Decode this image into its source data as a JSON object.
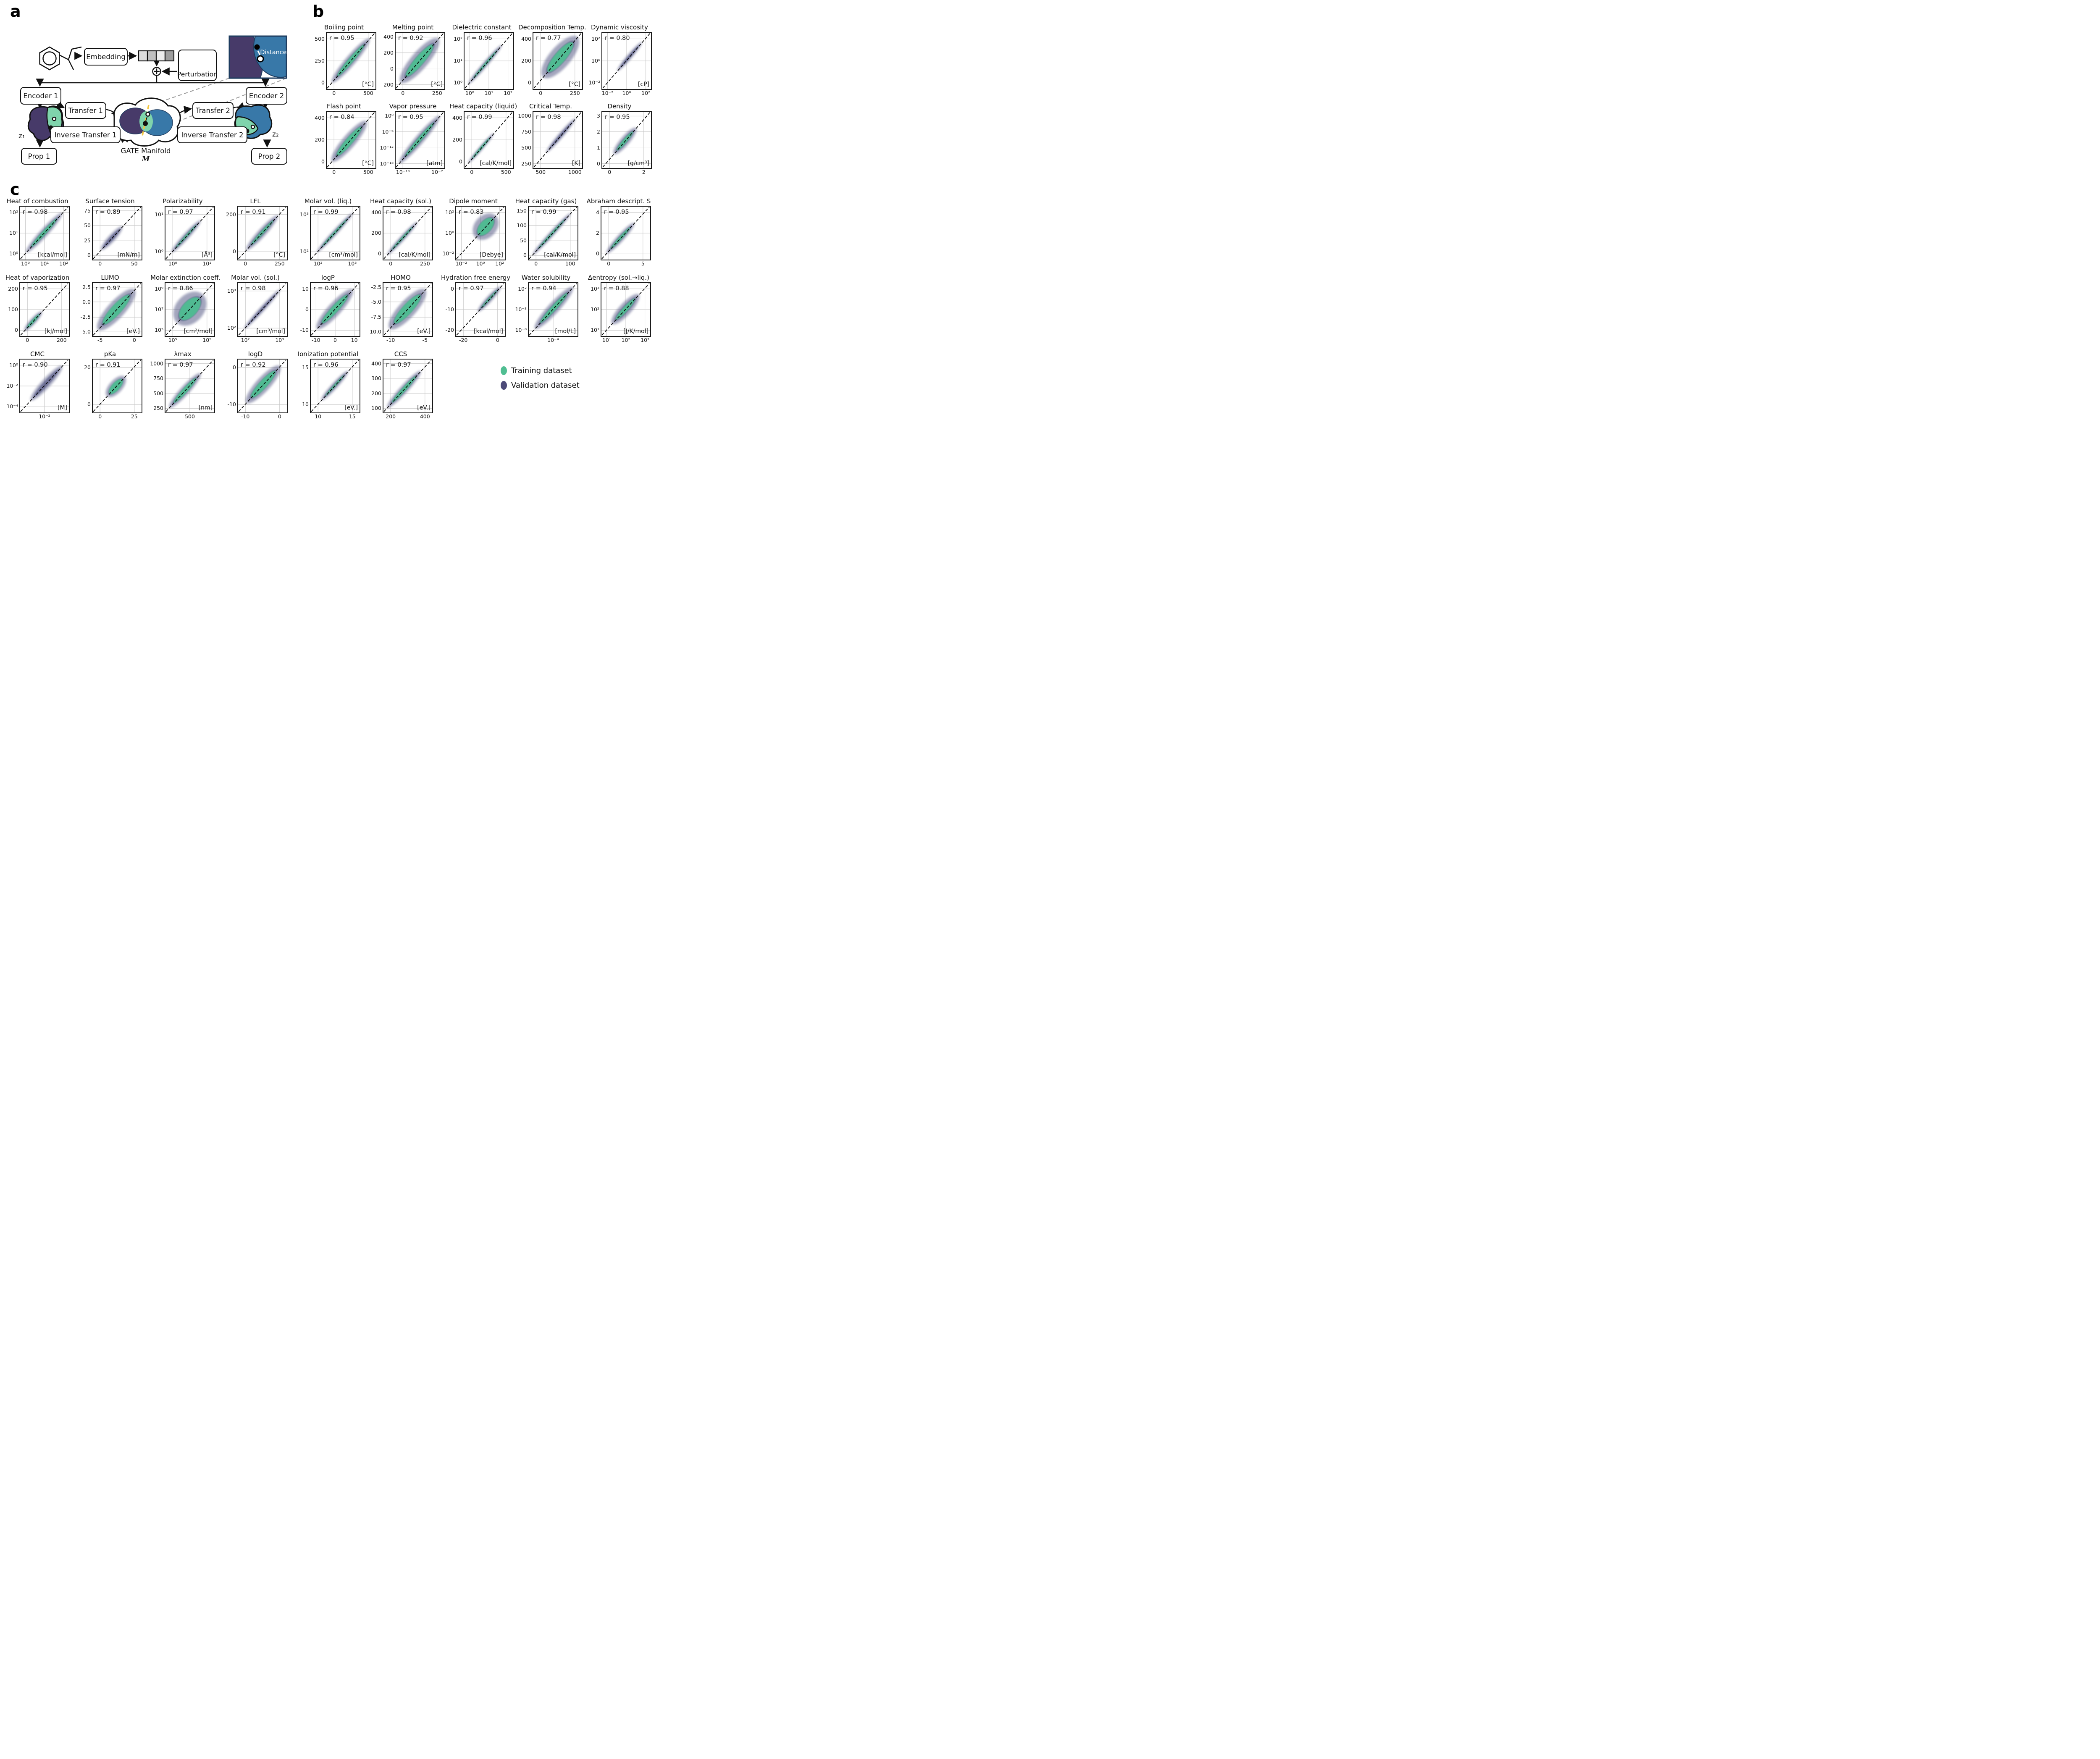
{
  "panel_a": {
    "label": "a",
    "boxes": {
      "embedding": "Embedding",
      "perturbation": "Perturbation",
      "encoder1": "Encoder 1",
      "encoder2": "Encoder 2",
      "transfer1": "Transfer 1",
      "transfer2": "Transfer 2",
      "inverse_transfer1": "Inverse Transfer 1",
      "inverse_transfer2": "Inverse Transfer 2",
      "prop1": "Prop 1",
      "prop2": "Prop 2"
    },
    "labels": {
      "z1": "z₁",
      "z2": "z₂",
      "manifold": "GATE Manifold",
      "manifold_symbol": "M",
      "distance": "Distance"
    }
  },
  "panel_b_label": "b",
  "panel_c_label": "c",
  "legend": {
    "items": [
      {
        "label": "Training dataset",
        "color": "#50BE92"
      },
      {
        "label": "Validation dataset",
        "color": "#4C4A78"
      }
    ]
  },
  "colors": {
    "training_green": "#50BE92",
    "validation_navy": "#4C4A78",
    "cloud_navy": "#4A4E7D",
    "purple": "#473A69",
    "blue": "#3878A8",
    "green": "#7FD4AC",
    "inset_border": "#1E3C5F",
    "yellow_dash": "#F3C53D",
    "grid_gray": "#C6C6C6"
  },
  "chart_data": {
    "type": "scatter",
    "note": "density scatter plots of predicted vs experimental property values; dashed identity line; green = training dataset, navy = validation dataset",
    "legend_entries": [
      "Training dataset",
      "Validation dataset"
    ],
    "panel_b": [
      {
        "title": "Boiling point",
        "r_label": "r = 0.95",
        "r": 0.95,
        "unit": "[°C]",
        "x_ticks": [
          "0",
          "500"
        ],
        "y_ticks": [
          "500",
          "250",
          "0"
        ],
        "scale": "linear",
        "cloud": {
          "w": 0.1,
          "g": 0.05,
          "span": [
            0.08,
            0.92
          ]
        }
      },
      {
        "title": "Melting point",
        "r_label": "r = 0.92",
        "r": 0.92,
        "unit": "[°C]",
        "x_ticks": [
          "0",
          "250"
        ],
        "y_ticks": [
          "400",
          "200",
          "0",
          "-200"
        ],
        "scale": "linear",
        "cloud": {
          "w": 0.17,
          "g": 0.09,
          "span": [
            0.08,
            0.92
          ]
        }
      },
      {
        "title": "Dielectric constant",
        "r_label": "r = 0.96",
        "r": 0.96,
        "unit": "",
        "x_ticks": [
          "10⁰",
          "10¹",
          "10²"
        ],
        "y_ticks": [
          "10²",
          "10¹",
          "10⁰"
        ],
        "scale": "log",
        "cloud": {
          "w": 0.05,
          "g": 0.02,
          "span": [
            0.05,
            0.8
          ]
        }
      },
      {
        "title": "Decomposition Temp.",
        "r_label": "r = 0.77",
        "r": 0.77,
        "unit": "[°C]",
        "x_ticks": [
          "0",
          "250"
        ],
        "y_ticks": [
          "400",
          "200",
          "0"
        ],
        "scale": "linear",
        "cloud": {
          "w": 0.21,
          "g": 0.11,
          "span": [
            0.18,
            0.95
          ]
        }
      },
      {
        "title": "Dynamic viscosity",
        "r_label": "r = 0.80",
        "r": 0.8,
        "unit": "[cP]",
        "x_ticks": [
          "10⁻²",
          "10⁰",
          "10²"
        ],
        "y_ticks": [
          "10²",
          "10⁰",
          "10⁻²"
        ],
        "scale": "log",
        "cloud": {
          "w": 0.05,
          "g": 0.0,
          "span": [
            0.3,
            0.85
          ]
        }
      },
      {
        "title": "Flash point",
        "r_label": "r = 0.84",
        "r": 0.84,
        "unit": "[°C]",
        "x_ticks": [
          "0",
          "500"
        ],
        "y_ticks": [
          "400",
          "200",
          "0"
        ],
        "scale": "linear",
        "cloud": {
          "w": 0.13,
          "g": 0.07,
          "span": [
            0.08,
            0.85
          ]
        }
      },
      {
        "title": "Vapor pressure",
        "r_label": "r = 0.95",
        "r": 0.95,
        "unit": "[atm]",
        "x_ticks": [
          "10⁻¹⁸",
          "10⁻⁷"
        ],
        "y_ticks": [
          "10⁰",
          "10⁻⁶",
          "10⁻¹²",
          "10⁻¹⁸"
        ],
        "scale": "log",
        "cloud": {
          "w": 0.09,
          "g": 0.04,
          "span": [
            0.05,
            0.95
          ]
        }
      },
      {
        "title": "Heat capacity (liquid)",
        "r_label": "r = 0.99",
        "r": 0.99,
        "unit": "[cal/K/mol]",
        "x_ticks": [
          "0",
          "500"
        ],
        "y_ticks": [
          "400",
          "200",
          "0"
        ],
        "scale": "linear",
        "cloud": {
          "w": 0.04,
          "g": 0.02,
          "span": [
            0.05,
            0.62
          ]
        }
      },
      {
        "title": "Critical Temp.",
        "r_label": "r = 0.98",
        "r": 0.98,
        "unit": "[K]",
        "x_ticks": [
          "500",
          "1000"
        ],
        "y_ticks": [
          "1000",
          "750",
          "500",
          "250"
        ],
        "scale": "linear",
        "cloud": {
          "w": 0.05,
          "g": 0.0,
          "span": [
            0.25,
            0.9
          ]
        }
      },
      {
        "title": "Density",
        "r_label": "r = 0.95",
        "r": 0.95,
        "unit": "[g/cm³]",
        "x_ticks": [
          "0",
          "2"
        ],
        "y_ticks": [
          "3",
          "2",
          "1",
          "0"
        ],
        "scale": "linear",
        "cloud": {
          "w": 0.09,
          "g": 0.04,
          "span": [
            0.22,
            0.72
          ]
        }
      }
    ],
    "panel_c_rows": [
      [
        {
          "title": "Heat of combustion",
          "r_label": "r = 0.98",
          "r": 0.98,
          "unit": "[kcal/mol]",
          "x_ticks": [
            "10⁰",
            "10¹",
            "10²"
          ],
          "y_ticks": [
            "10²",
            "10¹",
            "10⁰"
          ],
          "scale": "log",
          "cloud": {
            "w": 0.08,
            "g": 0.04,
            "span": [
              0.1,
              0.9
            ]
          }
        },
        {
          "title": "Surface tension",
          "r_label": "r = 0.89",
          "r": 0.89,
          "unit": "[mN/m]",
          "x_ticks": [
            "0",
            "50"
          ],
          "y_ticks": [
            "75",
            "50",
            "25",
            "0"
          ],
          "scale": "linear",
          "cloud": {
            "w": 0.07,
            "g": 0.0,
            "span": [
              0.15,
              0.62
            ]
          }
        },
        {
          "title": "Polarizability",
          "r_label": "r = 0.97",
          "r": 0.97,
          "unit": "[Å³]",
          "x_ticks": [
            "10⁰",
            "10¹"
          ],
          "y_ticks": [
            "10¹",
            "10⁰"
          ],
          "scale": "log",
          "cloud": {
            "w": 0.06,
            "g": 0.02,
            "span": [
              0.1,
              0.75
            ]
          }
        },
        {
          "title": "LFL",
          "r_label": "r = 0.91",
          "r": 0.91,
          "unit": "[°C]",
          "x_ticks": [
            "0",
            "250"
          ],
          "y_ticks": [
            "200",
            "0"
          ],
          "scale": "linear",
          "cloud": {
            "w": 0.08,
            "g": 0.03,
            "span": [
              0.15,
              0.85
            ]
          }
        },
        {
          "title": "Molar vol. (liq.)",
          "r_label": "r = 0.99",
          "r": 0.99,
          "unit": "[cm³/mol]",
          "x_ticks": [
            "10²",
            "10³"
          ],
          "y_ticks": [
            "10³",
            "10²"
          ],
          "scale": "log",
          "cloud": {
            "w": 0.05,
            "g": 0.02,
            "span": [
              0.1,
              0.9
            ]
          }
        },
        {
          "title": "Heat capacity (sol.)",
          "r_label": "r = 0.98",
          "r": 0.98,
          "unit": "[cal/K/mol]",
          "x_ticks": [
            "0",
            "250"
          ],
          "y_ticks": [
            "400",
            "200",
            "0"
          ],
          "scale": "linear",
          "cloud": {
            "w": 0.05,
            "g": 0.02,
            "span": [
              0.05,
              0.72
            ]
          }
        },
        {
          "title": "Dipole moment",
          "r_label": "r = 0.83",
          "r": 0.83,
          "unit": "[Debye]",
          "x_ticks": [
            "10⁻²",
            "10⁰",
            "10²"
          ],
          "y_ticks": [
            "10²",
            "10⁰",
            "10⁻²"
          ],
          "scale": "log",
          "cloud": {
            "w": 0.22,
            "g": 0.12,
            "span": [
              0.4,
              0.85
            ]
          }
        },
        {
          "title": "Heat capacity (gas)",
          "r_label": "r = 0.99",
          "r": 0.99,
          "unit": "[cal/K/mol]",
          "x_ticks": [
            "0",
            "100"
          ],
          "y_ticks": [
            "150",
            "100",
            "50",
            "0"
          ],
          "scale": "linear",
          "cloud": {
            "w": 0.05,
            "g": 0.02,
            "span": [
              0.05,
              0.9
            ]
          }
        },
        {
          "title": "Abraham descript. S",
          "r_label": "r = 0.95",
          "r": 0.95,
          "unit": "",
          "x_ticks": [
            "0",
            "5"
          ],
          "y_ticks": [
            "4",
            "2",
            "0"
          ],
          "scale": "linear",
          "cloud": {
            "w": 0.07,
            "g": 0.03,
            "span": [
              0.08,
              0.7
            ]
          }
        }
      ],
      [
        {
          "title": "Heat of vaporization",
          "r_label": "r = 0.95",
          "r": 0.95,
          "unit": "[kJ/mol]",
          "x_ticks": [
            "0",
            "200"
          ],
          "y_ticks": [
            "200",
            "100",
            "0"
          ],
          "scale": "linear",
          "cloud": {
            "w": 0.06,
            "g": 0.03,
            "span": [
              0.06,
              0.45
            ]
          }
        },
        {
          "title": "LUMO",
          "r_label": "r = 0.97",
          "r": 0.97,
          "unit": "[eV.]",
          "x_ticks": [
            "-5",
            "0"
          ],
          "y_ticks": [
            "2.5",
            "0.0",
            "-2.5",
            "-5.0"
          ],
          "scale": "linear",
          "cloud": {
            "w": 0.17,
            "g": 0.1,
            "span": [
              0.08,
              0.9
            ]
          }
        },
        {
          "title": "Molar extinction coeff.",
          "r_label": "r = 0.86",
          "r": 0.86,
          "unit": "[cm²/mol]",
          "x_ticks": [
            "10⁵",
            "10⁹"
          ],
          "y_ticks": [
            "10⁹",
            "10⁷",
            "10⁵"
          ],
          "scale": "log",
          "cloud": {
            "w": 0.28,
            "g": 0.15,
            "span": [
              0.22,
              0.8
            ]
          }
        },
        {
          "title": "Molar vol. (sol.)",
          "r_label": "r = 0.98",
          "r": 0.98,
          "unit": "[cm³/mol]",
          "x_ticks": [
            "10²",
            "10³"
          ],
          "y_ticks": [
            "10³",
            "10²"
          ],
          "scale": "log",
          "cloud": {
            "w": 0.05,
            "g": 0.0,
            "span": [
              0.1,
              0.9
            ]
          }
        },
        {
          "title": "logP",
          "r_label": "r = 0.96",
          "r": 0.96,
          "unit": "",
          "x_ticks": [
            "-10",
            "0",
            "10"
          ],
          "y_ticks": [
            "10",
            "0",
            "-10"
          ],
          "scale": "linear",
          "cloud": {
            "w": 0.13,
            "g": 0.07,
            "span": [
              0.1,
              0.9
            ]
          }
        },
        {
          "title": "HOMO",
          "r_label": "r = 0.95",
          "r": 0.95,
          "unit": "[eV.]",
          "x_ticks": [
            "-10",
            "-5"
          ],
          "y_ticks": [
            "-2.5",
            "-5.0",
            "-7.5",
            "-10.0"
          ],
          "scale": "linear",
          "cloud": {
            "w": 0.17,
            "g": 0.1,
            "span": [
              0.1,
              0.9
            ]
          }
        },
        {
          "title": "Hydration free energy",
          "r_label": "r = 0.97",
          "r": 0.97,
          "unit": "[kcal/mol]",
          "x_ticks": [
            "-20",
            "0"
          ],
          "y_ticks": [
            "0",
            "-10",
            "-20"
          ],
          "scale": "linear",
          "cloud": {
            "w": 0.06,
            "g": 0.02,
            "span": [
              0.45,
              0.96
            ]
          }
        },
        {
          "title": "Water solubility",
          "r_label": "r = 0.94",
          "r": 0.94,
          "unit": "[mol/L]",
          "x_ticks": [
            "10⁻⁴"
          ],
          "y_ticks": [
            "10²",
            "10⁻³",
            "10⁻⁸"
          ],
          "scale": "log",
          "cloud": {
            "w": 0.11,
            "g": 0.05,
            "span": [
              0.1,
              0.95
            ]
          }
        },
        {
          "title": "Δentropy (sol.→liq.)",
          "r_label": "r = 0.88",
          "r": 0.88,
          "unit": "[J/K/mol]",
          "x_ticks": [
            "10¹",
            "10²",
            "10³"
          ],
          "y_ticks": [
            "10³",
            "10²",
            "10¹"
          ],
          "scale": "log",
          "cloud": {
            "w": 0.12,
            "g": 0.05,
            "span": [
              0.2,
              0.8
            ]
          }
        }
      ],
      [
        {
          "title": "CMC",
          "r_label": "r = 0.90",
          "r": 0.9,
          "unit": "[M]",
          "x_ticks": [
            "10⁻²"
          ],
          "y_ticks": [
            "10⁰",
            "10⁻²",
            "10⁻⁴"
          ],
          "scale": "log",
          "cloud": {
            "w": 0.09,
            "g": 0.0,
            "span": [
              0.2,
              0.9
            ]
          }
        },
        {
          "title": "pKa",
          "r_label": "r = 0.91",
          "r": 0.91,
          "unit": "",
          "x_ticks": [
            "0",
            "25"
          ],
          "y_ticks": [
            "20",
            "0"
          ],
          "scale": "linear",
          "cloud": {
            "w": 0.13,
            "g": 0.08,
            "span": [
              0.28,
              0.68
            ]
          }
        },
        {
          "title": "λmax",
          "r_label": "r = 0.97",
          "r": 0.97,
          "unit": "[nm]",
          "x_ticks": [
            "500"
          ],
          "y_ticks": [
            "1000",
            "750",
            "500",
            "250"
          ],
          "scale": "linear",
          "cloud": {
            "w": 0.09,
            "g": 0.05,
            "span": [
              0.05,
              0.75
            ]
          }
        },
        {
          "title": "logD",
          "r_label": "r = 0.92",
          "r": 0.92,
          "unit": "",
          "x_ticks": [
            "-10",
            "0"
          ],
          "y_ticks": [
            "0",
            "-10"
          ],
          "scale": "linear",
          "cloud": {
            "w": 0.14,
            "g": 0.08,
            "span": [
              0.15,
              0.9
            ]
          }
        },
        {
          "title": "Ionization potential",
          "r_label": "r = 0.96",
          "r": 0.96,
          "unit": "[eV.]",
          "x_ticks": [
            "10",
            "15"
          ],
          "y_ticks": [
            "15",
            "10"
          ],
          "scale": "linear",
          "cloud": {
            "w": 0.06,
            "g": 0.02,
            "span": [
              0.2,
              0.8
            ]
          }
        },
        {
          "title": "CCS",
          "r_label": "r = 0.97",
          "r": 0.97,
          "unit": "[eV.]",
          "x_ticks": [
            "200",
            "400"
          ],
          "y_ticks": [
            "400",
            "300",
            "200",
            "100"
          ],
          "scale": "linear",
          "cloud": {
            "w": 0.08,
            "g": 0.04,
            "span": [
              0.05,
              0.8
            ]
          }
        }
      ]
    ]
  }
}
